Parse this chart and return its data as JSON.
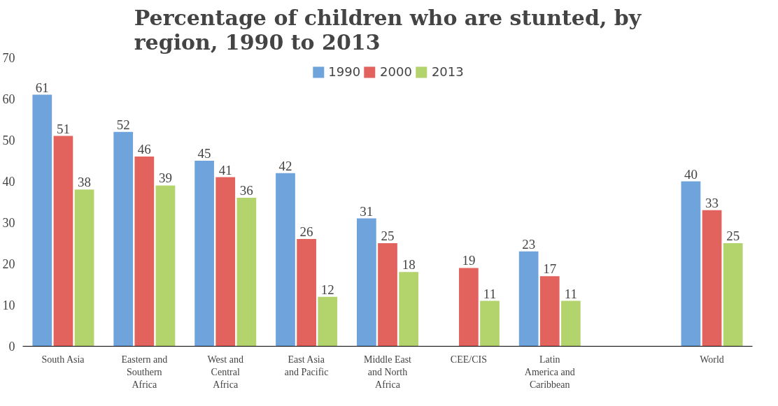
{
  "chart_data": {
    "type": "bar",
    "title": "Percentage of children who are stunted, by region, 1990 to 2013",
    "categories": [
      "South Asia",
      "Eastern and Southern Africa",
      "West and Central Africa",
      "East Asia and Pacific",
      "Middle East and North Africa",
      "CEE/CIS",
      "Latin America and Caribbean",
      null,
      "World"
    ],
    "series": [
      {
        "name": "1990",
        "color": "#6fa3dc",
        "values": [
          61,
          52,
          45,
          42,
          31,
          null,
          23,
          null,
          40
        ]
      },
      {
        "name": "2000",
        "color": "#e2625d",
        "values": [
          51,
          46,
          41,
          26,
          25,
          19,
          17,
          null,
          33
        ]
      },
      {
        "name": "2013",
        "color": "#b3d36c",
        "values": [
          38,
          39,
          36,
          12,
          18,
          11,
          11,
          null,
          25
        ]
      }
    ],
    "ylim": [
      0,
      70
    ],
    "yticks": [
      0,
      10,
      20,
      30,
      40,
      50,
      60,
      70
    ],
    "grid": false,
    "legend": "top",
    "data_labels": true
  }
}
